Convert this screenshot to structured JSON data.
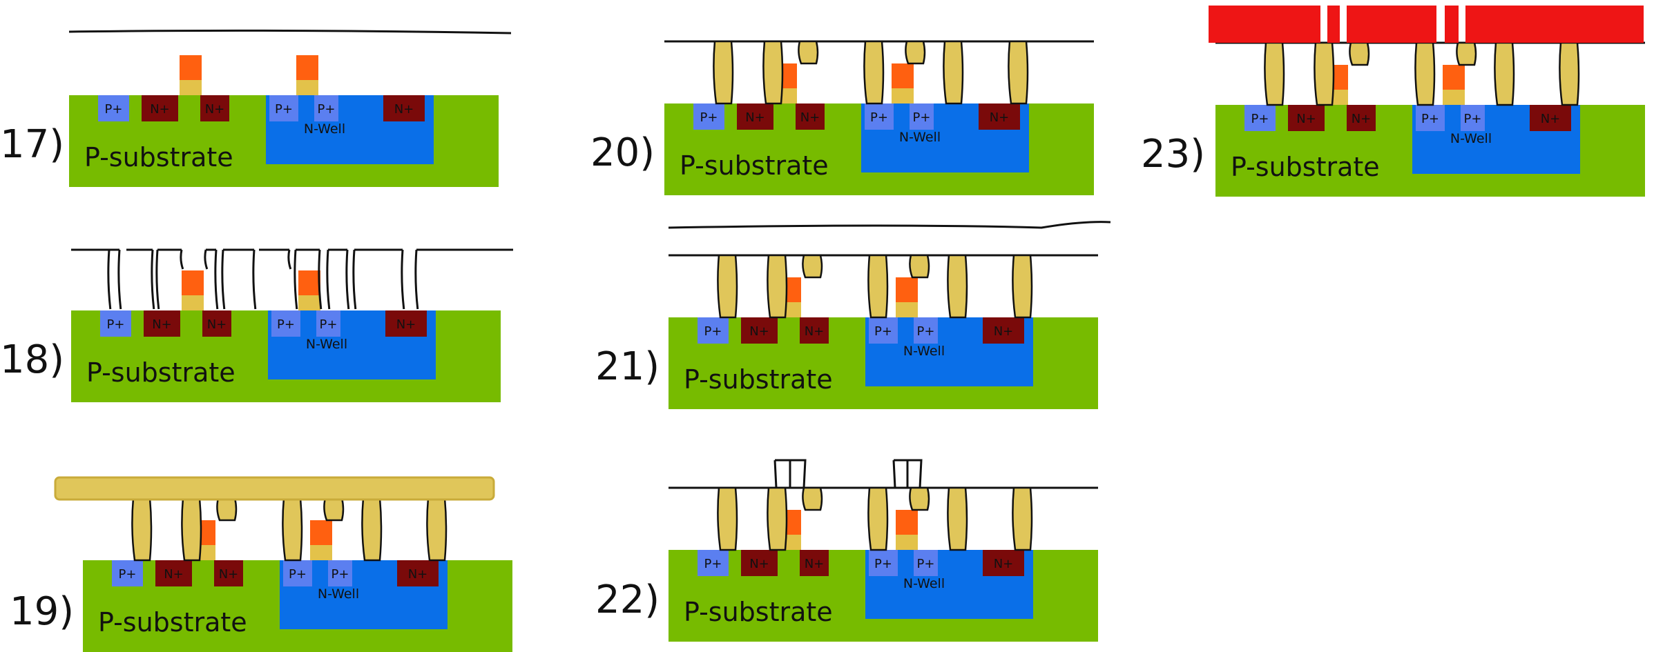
{
  "diagram": {
    "labels": {
      "substrate": "P-substrate",
      "nwell": "N-Well",
      "pplus": "P+",
      "nplus": "N+"
    },
    "panels": [
      {
        "step": "17)",
        "stage": 17
      },
      {
        "step": "18)",
        "stage": 18
      },
      {
        "step": "19)",
        "stage": 19
      },
      {
        "step": "20)",
        "stage": 20
      },
      {
        "step": "21)",
        "stage": 21
      },
      {
        "step": "22)",
        "stage": 22
      },
      {
        "step": "23)",
        "stage": 23
      }
    ],
    "colors": {
      "substrate": "#77bb00",
      "nwell": "#0a6fe8",
      "pplus": "#5b7ff0",
      "nplus": "#7a0a0a",
      "gate": "#ff6010",
      "gate_oxide": "#e3c24a",
      "metal": "#e0c65a",
      "metal_outline": "#c9ab3a",
      "photoresist": "#ee1515",
      "resist_line": "#111111"
    }
  }
}
